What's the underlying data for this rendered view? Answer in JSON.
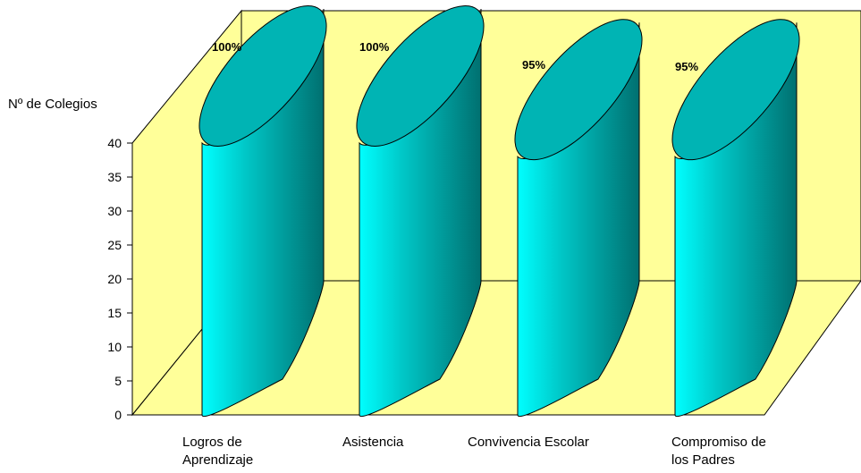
{
  "chart_data": {
    "type": "bar",
    "bar_shape": "3d-cylinder",
    "categories": [
      [
        "Logros de",
        "Aprendizaje"
      ],
      [
        "Asistencia"
      ],
      [
        "Convivencia Escolar"
      ],
      [
        "Compromiso de",
        "los Padres"
      ]
    ],
    "values": [
      40,
      40,
      38,
      38
    ],
    "data_labels": [
      "100%",
      "100%",
      "95%",
      "95%"
    ],
    "ylabel": "Nº de Colegios",
    "ylim": [
      0,
      40
    ],
    "yticks": [
      0,
      5,
      10,
      15,
      20,
      25,
      30,
      35,
      40
    ],
    "grid": true,
    "colors": {
      "wall": "#ffff99",
      "floor": "#ffff99",
      "bar_light": "#00ffff",
      "bar_mid": "#00c8c8",
      "bar_dark": "#007070",
      "bar_top": "#00b4b4"
    }
  }
}
